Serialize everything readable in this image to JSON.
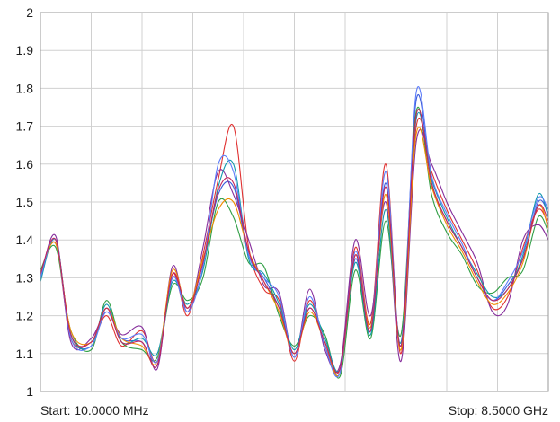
{
  "chart_data": {
    "type": "line",
    "title": "",
    "xlabel": "",
    "ylabel": "",
    "ylim": [
      1,
      2
    ],
    "y_ticks": [
      "1",
      "1.1",
      "1.2",
      "1.3",
      "1.4",
      "1.5",
      "1.6",
      "1.7",
      "1.8",
      "1.9",
      "2"
    ],
    "x_divisions": 10,
    "grid": true,
    "legend": "none",
    "start_label": "Start: 10.0000 MHz",
    "stop_label": "Stop: 8.5000 GHz",
    "x": [
      0,
      0.03,
      0.06,
      0.1,
      0.13,
      0.16,
      0.2,
      0.23,
      0.26,
      0.29,
      0.32,
      0.35,
      0.38,
      0.41,
      0.44,
      0.47,
      0.5,
      0.53,
      0.56,
      0.59,
      0.62,
      0.65,
      0.68,
      0.71,
      0.74,
      0.77,
      0.8,
      0.83,
      0.86,
      0.89,
      0.92,
      0.95,
      0.98,
      1.0
    ],
    "series": [
      {
        "color": "#3b5bdb",
        "values": [
          1.3,
          1.4,
          1.15,
          1.12,
          1.22,
          1.14,
          1.13,
          1.07,
          1.3,
          1.22,
          1.34,
          1.52,
          1.54,
          1.36,
          1.3,
          1.22,
          1.1,
          1.22,
          1.13,
          1.05,
          1.35,
          1.16,
          1.55,
          1.12,
          1.77,
          1.55,
          1.45,
          1.38,
          1.3,
          1.24,
          1.28,
          1.35,
          1.5,
          1.47
        ]
      },
      {
        "color": "#e03131",
        "values": [
          1.31,
          1.39,
          1.14,
          1.13,
          1.2,
          1.12,
          1.16,
          1.08,
          1.31,
          1.2,
          1.36,
          1.56,
          1.7,
          1.38,
          1.27,
          1.24,
          1.08,
          1.24,
          1.12,
          1.06,
          1.38,
          1.18,
          1.6,
          1.1,
          1.7,
          1.58,
          1.48,
          1.4,
          1.32,
          1.22,
          1.25,
          1.38,
          1.48,
          1.44
        ]
      },
      {
        "color": "#2f9e44",
        "values": [
          1.32,
          1.38,
          1.16,
          1.11,
          1.24,
          1.13,
          1.11,
          1.09,
          1.28,
          1.24,
          1.3,
          1.5,
          1.46,
          1.34,
          1.33,
          1.2,
          1.12,
          1.2,
          1.15,
          1.04,
          1.32,
          1.14,
          1.45,
          1.15,
          1.74,
          1.52,
          1.42,
          1.36,
          1.28,
          1.26,
          1.3,
          1.32,
          1.46,
          1.42
        ]
      },
      {
        "color": "#862e9c",
        "values": [
          1.3,
          1.41,
          1.13,
          1.14,
          1.21,
          1.15,
          1.17,
          1.06,
          1.33,
          1.21,
          1.38,
          1.58,
          1.52,
          1.4,
          1.28,
          1.26,
          1.09,
          1.27,
          1.11,
          1.07,
          1.4,
          1.2,
          1.5,
          1.08,
          1.66,
          1.6,
          1.5,
          1.42,
          1.34,
          1.21,
          1.23,
          1.4,
          1.44,
          1.4
        ]
      },
      {
        "color": "#1098ad",
        "values": [
          1.29,
          1.4,
          1.15,
          1.12,
          1.23,
          1.13,
          1.14,
          1.1,
          1.29,
          1.23,
          1.32,
          1.54,
          1.6,
          1.35,
          1.31,
          1.23,
          1.11,
          1.23,
          1.14,
          1.06,
          1.34,
          1.15,
          1.48,
          1.13,
          1.72,
          1.56,
          1.46,
          1.38,
          1.31,
          1.25,
          1.27,
          1.36,
          1.52,
          1.46
        ]
      },
      {
        "color": "#f08c00",
        "values": [
          1.31,
          1.39,
          1.16,
          1.13,
          1.22,
          1.14,
          1.12,
          1.08,
          1.32,
          1.22,
          1.35,
          1.48,
          1.5,
          1.37,
          1.29,
          1.21,
          1.1,
          1.21,
          1.13,
          1.05,
          1.36,
          1.17,
          1.52,
          1.11,
          1.68,
          1.54,
          1.44,
          1.37,
          1.29,
          1.23,
          1.26,
          1.34,
          1.49,
          1.43
        ]
      },
      {
        "color": "#5c7cfa",
        "values": [
          1.3,
          1.4,
          1.14,
          1.12,
          1.21,
          1.14,
          1.15,
          1.08,
          1.3,
          1.21,
          1.33,
          1.6,
          1.58,
          1.36,
          1.3,
          1.25,
          1.09,
          1.25,
          1.12,
          1.05,
          1.37,
          1.16,
          1.58,
          1.12,
          1.79,
          1.57,
          1.47,
          1.39,
          1.3,
          1.24,
          1.29,
          1.37,
          1.51,
          1.48
        ]
      },
      {
        "color": "#c2255c",
        "values": [
          1.31,
          1.4,
          1.15,
          1.13,
          1.22,
          1.13,
          1.13,
          1.07,
          1.31,
          1.22,
          1.34,
          1.53,
          1.55,
          1.37,
          1.29,
          1.22,
          1.1,
          1.22,
          1.13,
          1.06,
          1.36,
          1.16,
          1.54,
          1.12,
          1.73,
          1.55,
          1.45,
          1.38,
          1.3,
          1.24,
          1.27,
          1.35,
          1.49,
          1.45
        ]
      }
    ]
  }
}
